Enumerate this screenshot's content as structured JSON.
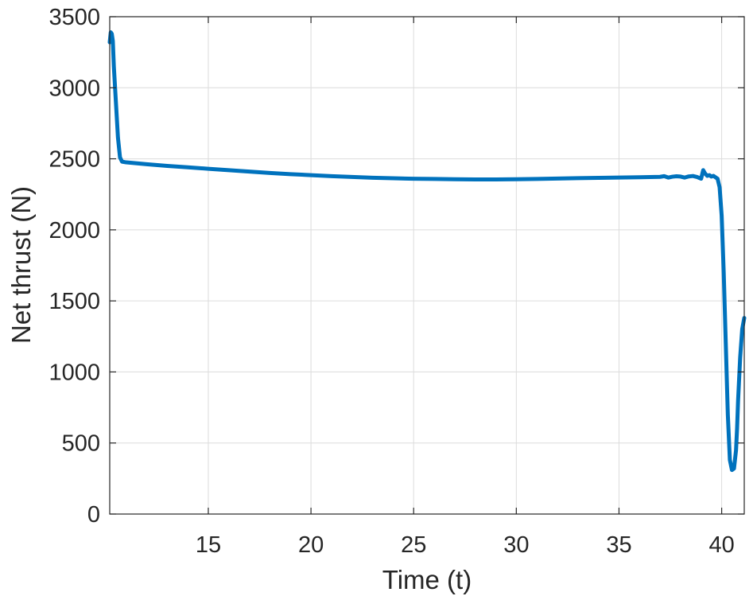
{
  "chart_data": {
    "type": "line",
    "title": "",
    "xlabel": "Time (t)",
    "ylabel": "Net thrust (N)",
    "xlim": [
      10.2,
      41.1
    ],
    "ylim": [
      0,
      3500
    ],
    "xticks": [
      15,
      20,
      25,
      30,
      35,
      40
    ],
    "yticks": [
      0,
      500,
      1000,
      1500,
      2000,
      2500,
      3000,
      3500
    ],
    "grid": true,
    "legend": "none",
    "series": [
      {
        "color": "#0072bd",
        "x": [
          10.2,
          10.25,
          10.3,
          10.35,
          10.4,
          10.5,
          10.6,
          10.7,
          10.8,
          11.0,
          12.0,
          13.0,
          14.0,
          15.0,
          16.0,
          17.0,
          18.0,
          19.0,
          20.0,
          21.0,
          22.0,
          23.0,
          24.0,
          25.0,
          26.0,
          27.0,
          28.0,
          29.0,
          30.0,
          31.0,
          32.0,
          33.0,
          34.0,
          35.0,
          36.0,
          37.0,
          37.2,
          37.4,
          37.6,
          37.8,
          38.0,
          38.2,
          38.4,
          38.6,
          38.8,
          39.0,
          39.1,
          39.2,
          39.3,
          39.4,
          39.5,
          39.6,
          39.7,
          39.8,
          39.9,
          40.0,
          40.1,
          40.2,
          40.3,
          40.4,
          40.5,
          40.6,
          40.7,
          40.75,
          40.8,
          40.9,
          41.0,
          41.1
        ],
        "y": [
          3320,
          3390,
          3380,
          3330,
          3150,
          2900,
          2650,
          2510,
          2480,
          2475,
          2462,
          2450,
          2440,
          2430,
          2420,
          2410,
          2400,
          2392,
          2385,
          2378,
          2372,
          2367,
          2363,
          2360,
          2358,
          2356,
          2355,
          2355,
          2356,
          2358,
          2361,
          2364,
          2366,
          2368,
          2370,
          2373,
          2378,
          2368,
          2374,
          2377,
          2375,
          2368,
          2376,
          2379,
          2372,
          2360,
          2420,
          2395,
          2380,
          2385,
          2375,
          2380,
          2370,
          2360,
          2300,
          2100,
          1700,
          1200,
          700,
          380,
          310,
          320,
          450,
          600,
          800,
          1100,
          1300,
          1380
        ]
      }
    ]
  }
}
